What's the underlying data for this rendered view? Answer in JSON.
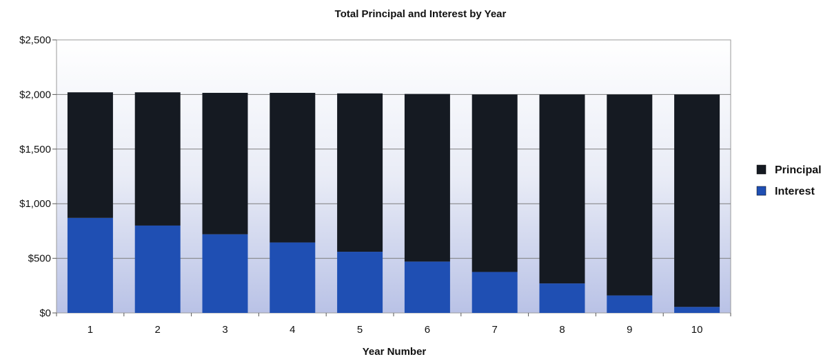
{
  "chart_data": {
    "type": "bar",
    "stacked": true,
    "title": "Total Principal and Interest by Year",
    "xlabel": "Year Number",
    "ylabel": "",
    "categories": [
      "1",
      "2",
      "3",
      "4",
      "5",
      "6",
      "7",
      "8",
      "9",
      "10"
    ],
    "series": [
      {
        "name": "Interest",
        "color": "#1f4fb3",
        "values": [
          870,
          800,
          720,
          645,
          560,
          470,
          375,
          270,
          160,
          55
        ]
      },
      {
        "name": "Principal",
        "color": "#151a22",
        "values": [
          1150,
          1220,
          1295,
          1370,
          1450,
          1535,
          1625,
          1730,
          1840,
          1945
        ]
      }
    ],
    "ylim": [
      0,
      2500
    ],
    "yticks": [
      0,
      500,
      1000,
      1500,
      2000,
      2500
    ],
    "ytick_labels": [
      "$0",
      "$500",
      "$1,000",
      "$1,500",
      "$2,000",
      "$2,500"
    ],
    "grid": true,
    "legend": {
      "position": "right",
      "entries": [
        "Principal",
        "Interest"
      ]
    }
  }
}
